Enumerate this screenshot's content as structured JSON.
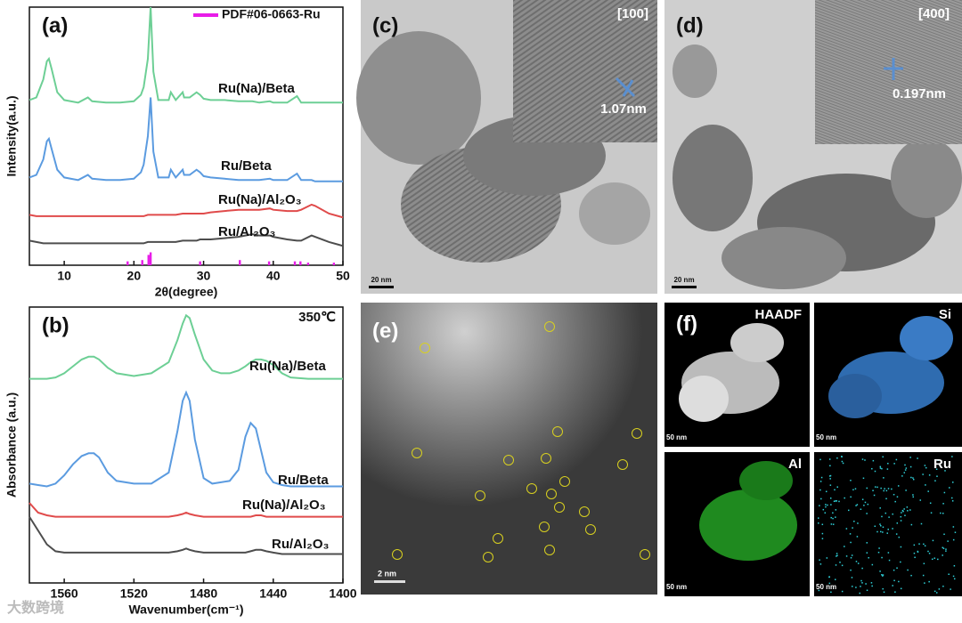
{
  "chart_data": [
    {
      "type": "line",
      "panel_label": "(a)",
      "xlabel": "2θ(degree)",
      "ylabel": "Intensity(a.u.)",
      "x": [
        5,
        6,
        7,
        7.5,
        7.8,
        8.2,
        9,
        10,
        12,
        13.4,
        14,
        16,
        18,
        20,
        21,
        21.4,
        22,
        22.4,
        22.8,
        23.5,
        25,
        25.3,
        26,
        27,
        27.2,
        28,
        29,
        29.5,
        30,
        31,
        33,
        35,
        37,
        38,
        39.5,
        40,
        42,
        43.4,
        44,
        45.5,
        46,
        48,
        50
      ],
      "xlim": [
        5,
        50
      ],
      "xticks": [
        10,
        20,
        30,
        40,
        50
      ],
      "ylim": [
        0,
        100
      ],
      "series": [
        {
          "name": "Ru(Na)/Beta",
          "color": "#6dcf95",
          "values": [
            64,
            65,
            72,
            79,
            80,
            76,
            67,
            64,
            63,
            65,
            63.5,
            63,
            63,
            63.5,
            66,
            69,
            80,
            100,
            75,
            64,
            64,
            67,
            64,
            67,
            65,
            65,
            67,
            66,
            64.5,
            64,
            64,
            63.5,
            63.5,
            63,
            63.5,
            63,
            63,
            65.5,
            63,
            63,
            63,
            63,
            63
          ]
        },
        {
          "name": "Ru/Beta",
          "color": "#5b9be0",
          "values": [
            34,
            35,
            41,
            48,
            49,
            45,
            37,
            34,
            33,
            35,
            33.5,
            33,
            33,
            33.5,
            36,
            39,
            50,
            65,
            44,
            34,
            34,
            37,
            34,
            37,
            35,
            35,
            37,
            36,
            34.5,
            34,
            33.5,
            33,
            33,
            33,
            33.5,
            33,
            33,
            35.5,
            33,
            33,
            32.5,
            32.5,
            32.5
          ]
        },
        {
          "name": "Ru(Na)/Al₂O₃",
          "color": "#e04b4b",
          "values": [
            19.5,
            19,
            19,
            19,
            19,
            19,
            19,
            19,
            19,
            19,
            19,
            19,
            19,
            19,
            19,
            19,
            19.5,
            19.5,
            19.5,
            19.5,
            19.5,
            19.5,
            19.5,
            20,
            20,
            20,
            20,
            20,
            20,
            20.5,
            21,
            21.5,
            21.5,
            21.5,
            22,
            21.5,
            21,
            21,
            21.5,
            23.5,
            23,
            20,
            18.5
          ]
        },
        {
          "name": "Ru/Al₂O₃",
          "color": "#4d4d4d",
          "values": [
            9.5,
            9,
            8.5,
            8.5,
            8.5,
            8.5,
            8.5,
            8.5,
            8.5,
            8.5,
            8.5,
            8.5,
            8.5,
            8.5,
            8.5,
            8.5,
            9,
            9,
            9,
            9,
            9,
            9,
            9,
            9.5,
            9.5,
            9.5,
            9.5,
            10,
            10,
            10,
            10.5,
            11,
            12,
            11.5,
            11.5,
            11,
            10,
            9.5,
            9.5,
            11.5,
            11,
            9,
            7.5
          ]
        }
      ],
      "reference": {
        "name": "PDF#06-0663-Ru",
        "color": "#e81ce8",
        "x": [
          19.1,
          21.2,
          22.1,
          22.4,
          29.5,
          35.2,
          39.4,
          43.1,
          43.9,
          45.0,
          48.7
        ],
        "values": [
          1.5,
          2,
          4,
          5,
          1.5,
          2,
          1.5,
          1.5,
          1.5,
          1,
          1
        ]
      }
    },
    {
      "type": "line",
      "panel_label": "(b)",
      "annotation": "350℃",
      "xlabel": "Wavenumber(cm⁻¹)",
      "ylabel": "Absorbance (a.u.)",
      "x": [
        1580,
        1575,
        1570,
        1565,
        1560,
        1555,
        1550,
        1546,
        1543,
        1540,
        1535,
        1530,
        1520,
        1510,
        1500,
        1495,
        1492,
        1490,
        1488,
        1485,
        1480,
        1475,
        1470,
        1465,
        1460,
        1456,
        1453,
        1450,
        1447,
        1444,
        1440,
        1435,
        1430,
        1420,
        1410,
        1400
      ],
      "xlim": [
        1580,
        1400
      ],
      "xticks": [
        1560,
        1520,
        1480,
        1440,
        1400
      ],
      "ylim": [
        0,
        100
      ],
      "series": [
        {
          "name": "Ru(Na)/Beta",
          "color": "#6dcf95",
          "values": [
            74,
            74,
            74,
            74.5,
            76,
            78.5,
            81,
            82,
            82,
            81,
            78,
            76,
            75,
            76,
            80,
            88,
            94,
            97,
            96,
            90,
            81,
            77,
            76,
            76,
            77,
            78.5,
            80,
            81,
            81,
            80.5,
            79,
            76,
            74.5,
            74,
            74,
            74
          ]
        },
        {
          "name": "Ru/Beta",
          "color": "#5b9be0",
          "values": [
            36,
            35.5,
            35,
            36,
            39,
            43,
            46,
            47,
            47,
            45.5,
            40,
            37,
            36,
            36,
            40,
            55,
            66,
            69,
            66,
            52,
            38,
            36,
            36.5,
            37,
            41,
            53,
            58,
            56,
            48,
            40,
            36.5,
            35.5,
            35,
            35,
            35,
            35
          ]
        },
        {
          "name": "Ru(Na)/Al₂O₃",
          "color": "#e04b4b",
          "values": [
            29,
            25.5,
            24.5,
            24,
            24,
            24,
            24,
            24,
            24,
            24,
            24,
            24,
            24,
            24,
            24,
            24.5,
            25,
            25.5,
            25,
            24.5,
            24,
            24,
            24,
            24,
            24,
            24,
            24,
            24.5,
            24.5,
            24,
            24,
            24,
            24,
            24,
            24,
            24
          ]
        },
        {
          "name": "Ru/Al₂O₃",
          "color": "#4d4d4d",
          "values": [
            24,
            19,
            14,
            11.5,
            11,
            11,
            11,
            11,
            11,
            11,
            11,
            11,
            11,
            11,
            11,
            11.5,
            12,
            12.5,
            12,
            11.5,
            11,
            11,
            11,
            11,
            11,
            11,
            11.5,
            12,
            12,
            11.5,
            11,
            10.5,
            10.5,
            10.5,
            10.5,
            10.5
          ]
        }
      ]
    }
  ],
  "panels": {
    "c": {
      "label": "(c)",
      "zone": "[100]",
      "spacing": "1.07nm",
      "scale": "20 nm"
    },
    "d": {
      "label": "(d)",
      "zone": "[400]",
      "spacing": "0.197nm",
      "scale": "20 nm"
    },
    "e": {
      "label": "(e)",
      "scale": "2 nm"
    },
    "f": {
      "label": "(f)",
      "tiles": [
        {
          "name": "HAADF",
          "scale": "50 nm"
        },
        {
          "name": "Si",
          "scale": "50 nm"
        },
        {
          "name": "Al",
          "scale": "50 nm"
        },
        {
          "name": "Ru",
          "scale": "50 nm"
        }
      ]
    }
  },
  "watermark": "大数跨境"
}
